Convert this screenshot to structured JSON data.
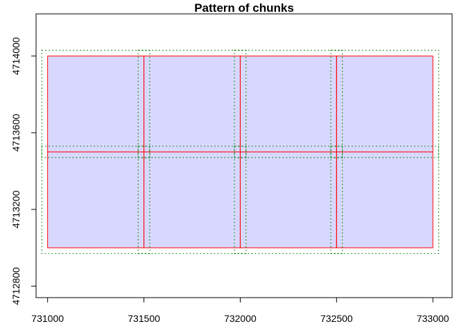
{
  "chart_data": {
    "type": "map-grid",
    "title": "Pattern of chunks",
    "xlabel": "",
    "ylabel": "",
    "xlim": [
      730940,
      733100
    ],
    "ylim": [
      4712740,
      4714220
    ],
    "x_ticks": [
      731000,
      731500,
      732000,
      732500,
      733000
    ],
    "y_ticks": [
      4712800,
      4713200,
      4713600,
      4714000
    ],
    "chunk_fill_color": "#d8d8ff",
    "chunk_border_color": "#ff0000",
    "buffer_color": "#008000",
    "chunks": [
      {
        "xmin": 731000,
        "xmax": 731500,
        "ymin": 4713500,
        "ymax": 4714000
      },
      {
        "xmin": 731500,
        "xmax": 732000,
        "ymin": 4713500,
        "ymax": 4714000
      },
      {
        "xmin": 732000,
        "xmax": 732500,
        "ymin": 4713500,
        "ymax": 4714000
      },
      {
        "xmin": 732500,
        "xmax": 733000,
        "ymin": 4713500,
        "ymax": 4714000
      },
      {
        "xmin": 731000,
        "xmax": 731500,
        "ymin": 4713000,
        "ymax": 4713500
      },
      {
        "xmin": 731500,
        "xmax": 732000,
        "ymin": 4713000,
        "ymax": 4713500
      },
      {
        "xmin": 732000,
        "xmax": 732500,
        "ymin": 4713000,
        "ymax": 4713500
      },
      {
        "xmin": 732500,
        "xmax": 733000,
        "ymin": 4713000,
        "ymax": 4713500
      }
    ],
    "buffer": 30,
    "grid": false,
    "legend": "none"
  }
}
